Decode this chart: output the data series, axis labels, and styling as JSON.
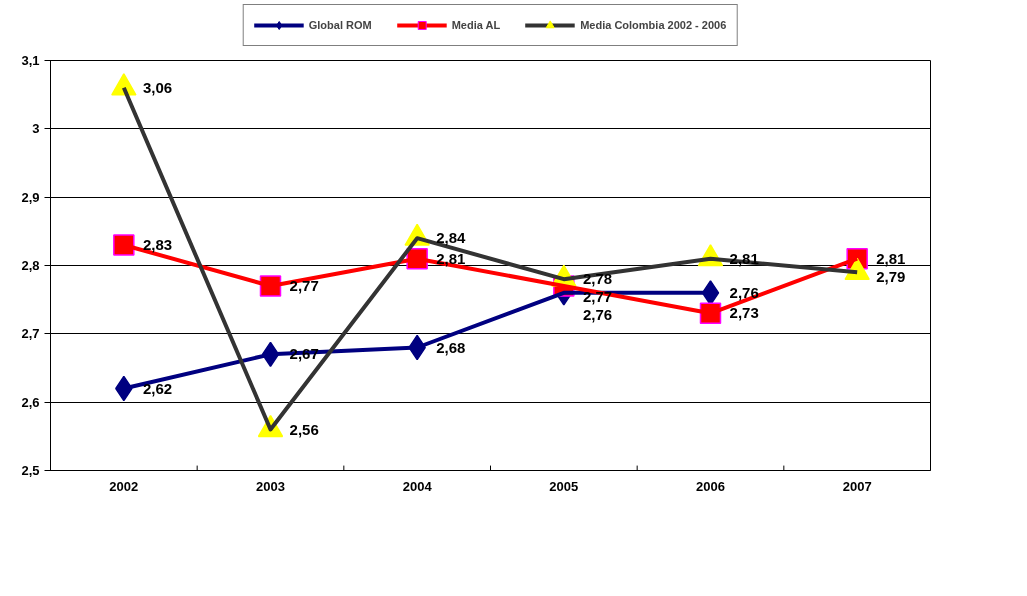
{
  "chart_data": {
    "type": "line",
    "categories": [
      "2002",
      "2003",
      "2004",
      "2005",
      "2006",
      "2007"
    ],
    "series": [
      {
        "name": "Global ROM",
        "color": "#000080",
        "marker": "diamond",
        "values": [
          2.62,
          2.67,
          2.68,
          2.76,
          2.76,
          null
        ],
        "value_labels": [
          "2,62",
          "2,67",
          "2,68",
          "2,76",
          "2,76",
          null
        ]
      },
      {
        "name": "Media AL",
        "color": "#ff0000",
        "marker": "square",
        "values": [
          2.83,
          2.77,
          2.81,
          2.77,
          2.73,
          2.81
        ],
        "value_labels": [
          "2,83",
          "2,77",
          "2,81",
          "2,77",
          "2,73",
          "2,81"
        ]
      },
      {
        "name": "Media Colombia 2002 - 2006",
        "color": "#333333",
        "marker": "triangle",
        "values": [
          3.06,
          2.56,
          2.84,
          2.78,
          2.81,
          2.79
        ],
        "value_labels": [
          "3,06",
          "2,56",
          "2,84",
          "2,78",
          "2,81",
          "2,79"
        ]
      }
    ],
    "ylim": [
      2.5,
      3.1
    ],
    "yticks": [
      {
        "value": 2.5,
        "label": "2,5"
      },
      {
        "value": 2.6,
        "label": "2,6"
      },
      {
        "value": 2.7,
        "label": "2,7"
      },
      {
        "value": 2.8,
        "label": "2,8"
      },
      {
        "value": 2.9,
        "label": "2,9"
      },
      3,
      {
        "value": 3.1,
        "label": "3,1"
      }
    ],
    "grid": "y",
    "legend": "top"
  }
}
